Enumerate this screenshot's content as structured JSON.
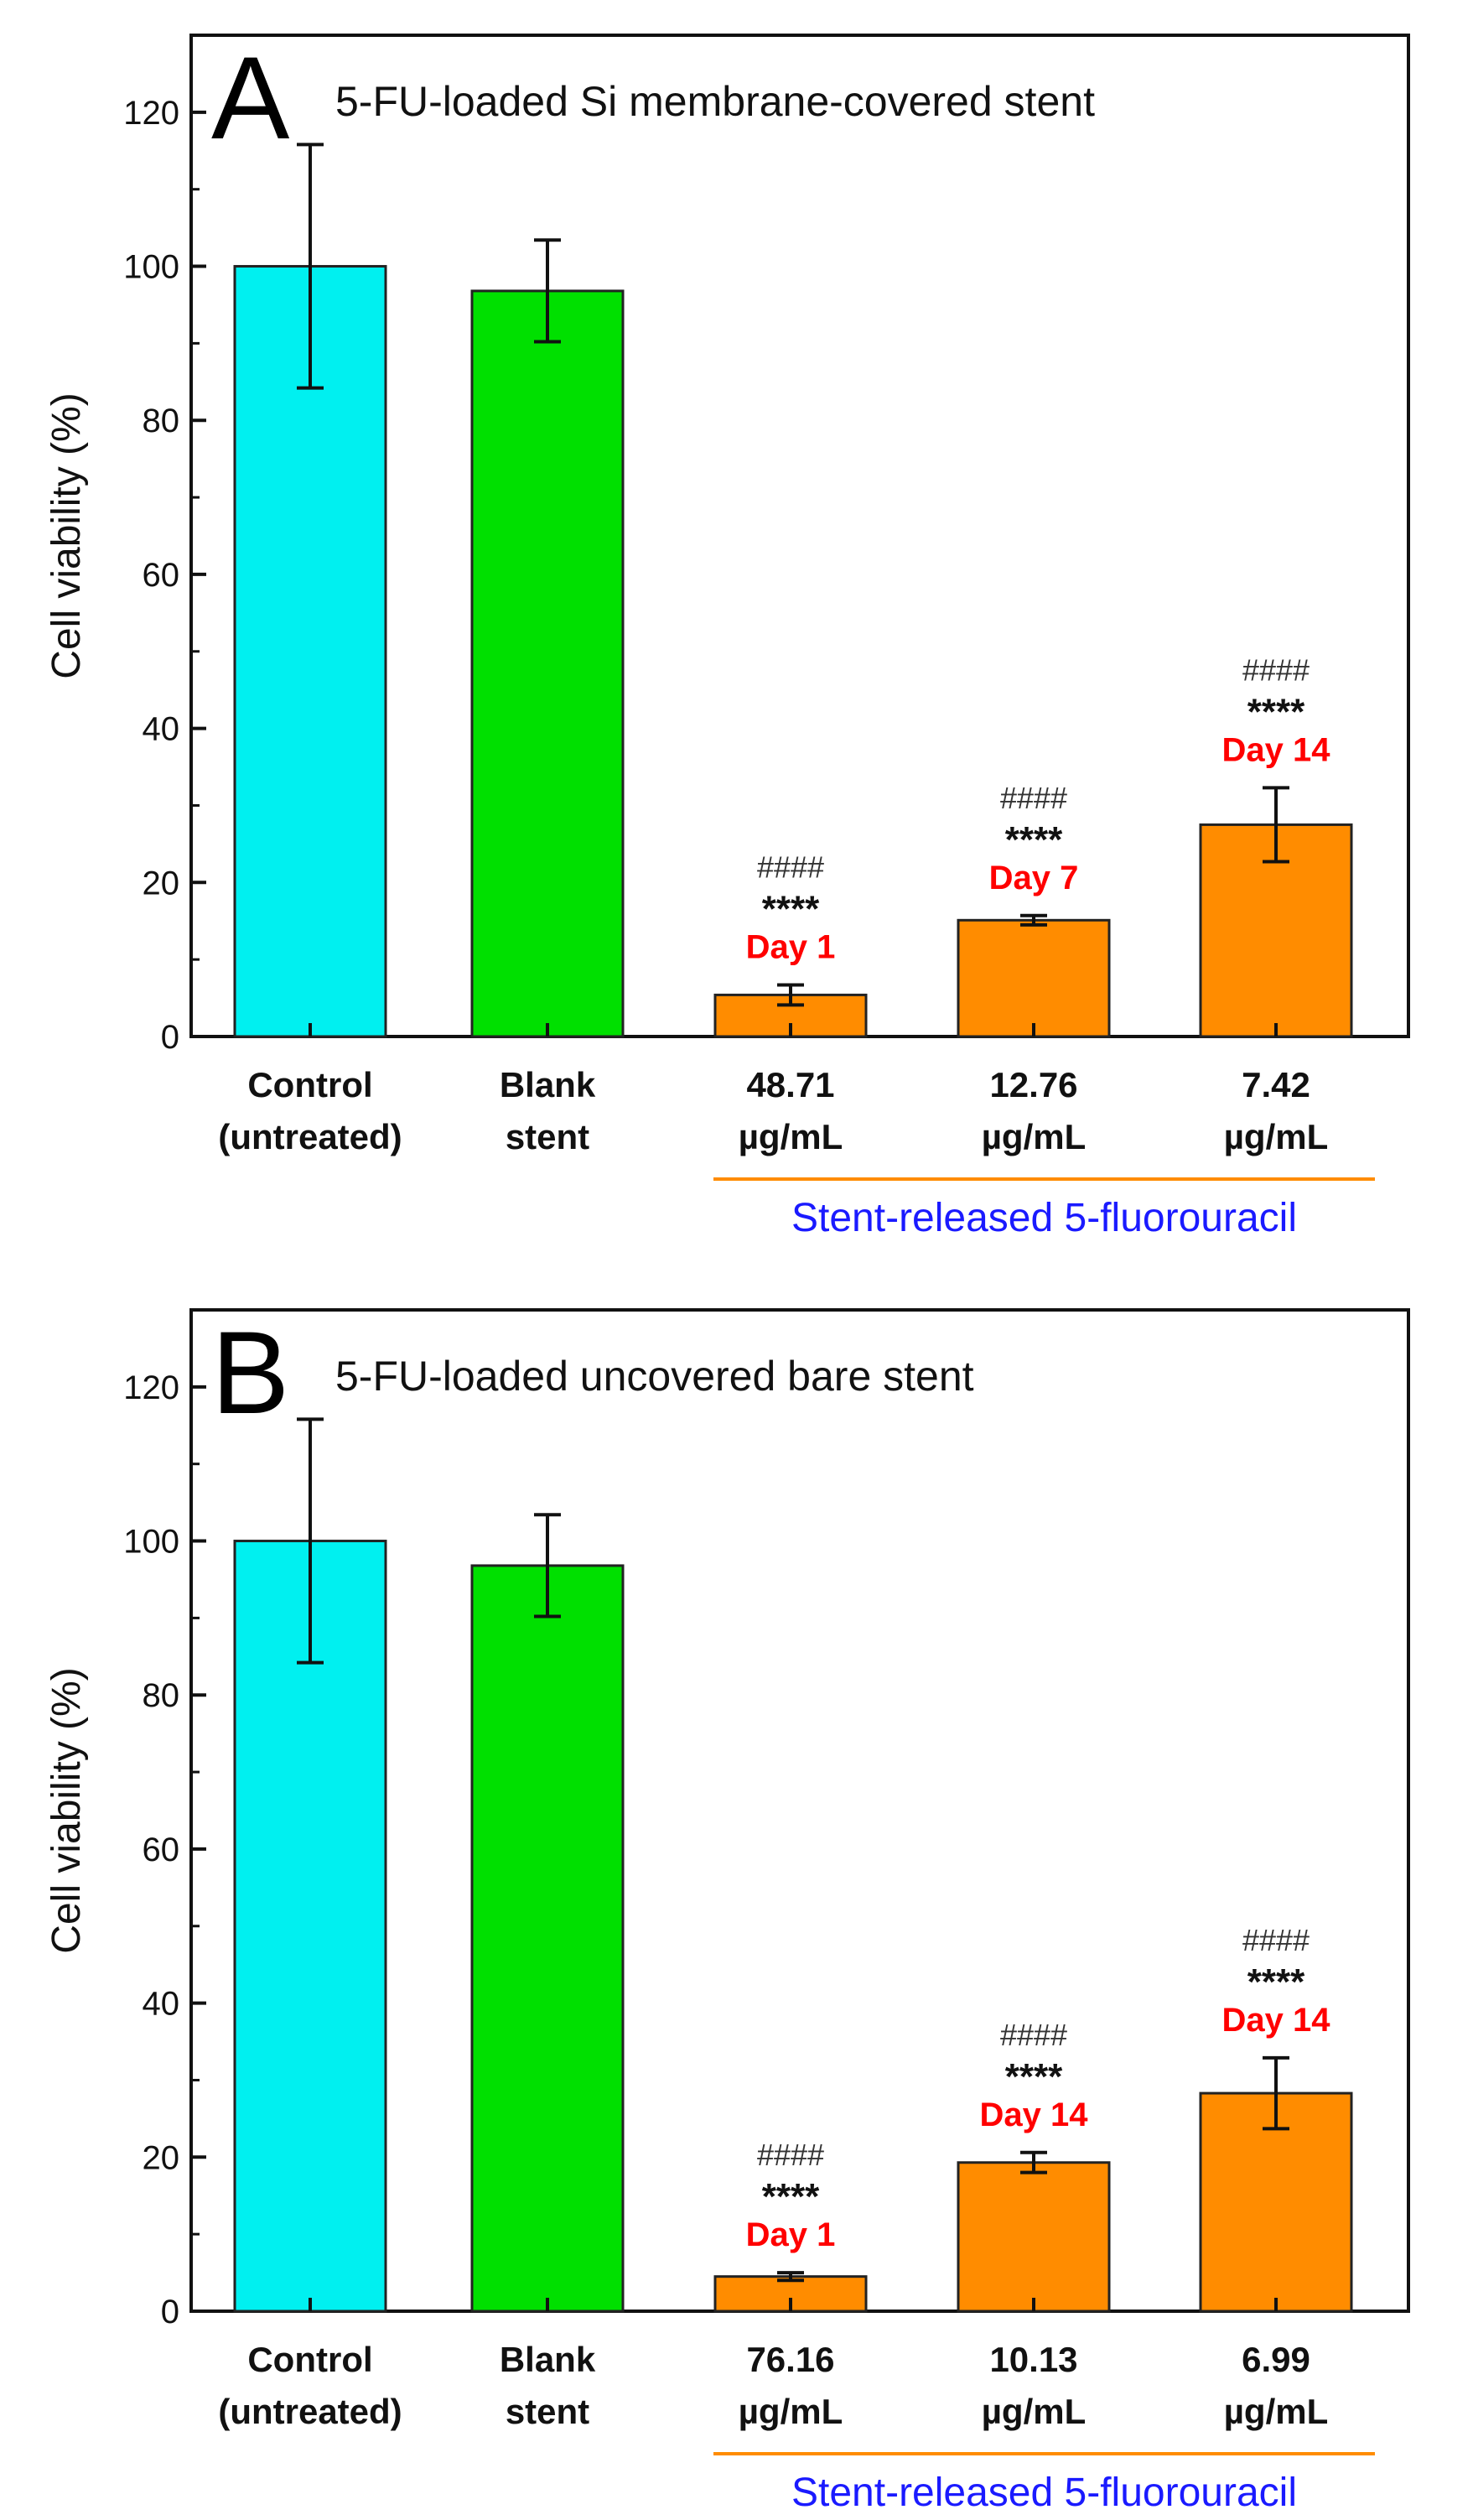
{
  "chart_data": [
    {
      "type": "bar",
      "panel_label": "A",
      "title": "5-FU-loaded Si membrane-covered stent",
      "ylabel": "Cell viability (%)",
      "xlabel": "",
      "ylim": [
        0,
        130
      ],
      "yticks": [
        0,
        20,
        40,
        60,
        80,
        100,
        120
      ],
      "categories": [
        [
          "Control",
          "(untreated)"
        ],
        [
          "Blank",
          "stent"
        ],
        [
          "48.71",
          "µg/mL"
        ],
        [
          "12.76",
          "µg/mL"
        ],
        [
          "7.42",
          "µg/mL"
        ]
      ],
      "values": [
        100,
        96.8,
        5.4,
        15.1,
        27.5
      ],
      "errors": [
        15.8,
        6.6,
        1.3,
        0.6,
        4.8
      ],
      "bar_colors": [
        "#00f0f0",
        "#00e000",
        "#ff8c00",
        "#ff8c00",
        "#ff8c00"
      ],
      "annotations": [
        null,
        null,
        {
          "hash": "####",
          "stars": "****",
          "day": "Day 1"
        },
        {
          "hash": "####",
          "stars": "****",
          "day": "Day 7"
        },
        {
          "hash": "####",
          "stars": "****",
          "day": "Day 14"
        }
      ],
      "group_label": "Stent-released 5-fluorouracil",
      "group_start": 2,
      "group_end": 4
    },
    {
      "type": "bar",
      "panel_label": "B",
      "title": "5-FU-loaded uncovered bare stent",
      "ylabel": "Cell viability (%)",
      "xlabel": "",
      "ylim": [
        0,
        130
      ],
      "yticks": [
        0,
        20,
        40,
        60,
        80,
        100,
        120
      ],
      "categories": [
        [
          "Control",
          "(untreated)"
        ],
        [
          "Blank",
          "stent"
        ],
        [
          "76.16",
          "µg/mL"
        ],
        [
          "10.13",
          "µg/mL"
        ],
        [
          "6.99",
          "µg/mL"
        ]
      ],
      "values": [
        100,
        96.8,
        4.5,
        19.3,
        28.3
      ],
      "errors": [
        15.8,
        6.6,
        0.5,
        1.3,
        4.6
      ],
      "bar_colors": [
        "#00f0f0",
        "#00e000",
        "#ff8c00",
        "#ff8c00",
        "#ff8c00"
      ],
      "annotations": [
        null,
        null,
        {
          "hash": "####",
          "stars": "****",
          "day": "Day 1"
        },
        {
          "hash": "####",
          "stars": "****",
          "day": "Day 14"
        },
        {
          "hash": "####",
          "stars": "****",
          "day": "Day 14"
        }
      ],
      "group_label": "Stent-released 5-fluorouracil",
      "group_start": 2,
      "group_end": 4
    }
  ],
  "colors": {
    "day_label": "#ff0000",
    "group_label": "#1a1aff",
    "group_line": "#ff8c00",
    "axis": "#111111",
    "bar_edge": "#222222"
  }
}
